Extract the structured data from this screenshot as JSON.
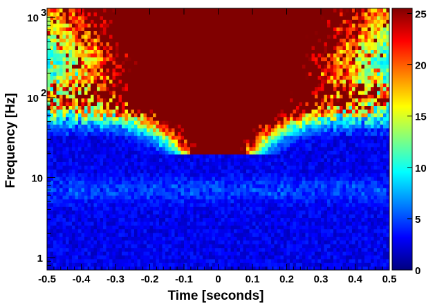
{
  "chart_data": {
    "type": "heatmap",
    "title": "",
    "xlabel": "Time [seconds]",
    "ylabel": "Frequency [Hz]",
    "xlim": [
      -0.5,
      0.5
    ],
    "ylim": [
      0.7,
      1300
    ],
    "y_scale": "log",
    "x_ticks": [
      "-0.5",
      "-0.4",
      "-0.3",
      "-0.2",
      "-0.1",
      "0",
      "0.1",
      "0.2",
      "0.3",
      "0.4",
      "0.5"
    ],
    "x_tick_values": [
      -0.5,
      -0.4,
      -0.3,
      -0.2,
      -0.1,
      0,
      0.1,
      0.2,
      0.3,
      0.4,
      0.5
    ],
    "y_ticks": [
      {
        "value": 1,
        "base": "1",
        "exp": ""
      },
      {
        "value": 10,
        "base": "10",
        "exp": ""
      },
      {
        "value": 100,
        "base": "10",
        "exp": "2"
      },
      {
        "value": 1000,
        "base": "10",
        "exp": "3"
      }
    ],
    "colorbar": {
      "min": 0,
      "max": 25.5,
      "ticks": [
        "0",
        "5",
        "10",
        "15",
        "20",
        "25"
      ],
      "tick_values": [
        0,
        5,
        10,
        15,
        20,
        25
      ],
      "colors": [
        "#00007f",
        "#0000ff",
        "#0080ff",
        "#00ffff",
        "#80ff80",
        "#ffff00",
        "#ff8000",
        "#ff0000",
        "#800000"
      ]
    },
    "features": {
      "saturated_core": "energy above 25 concentrated around t = 0, extending up to ~1000 Hz",
      "lower_boundary_hz": 20,
      "background_value": 1.5
    }
  }
}
